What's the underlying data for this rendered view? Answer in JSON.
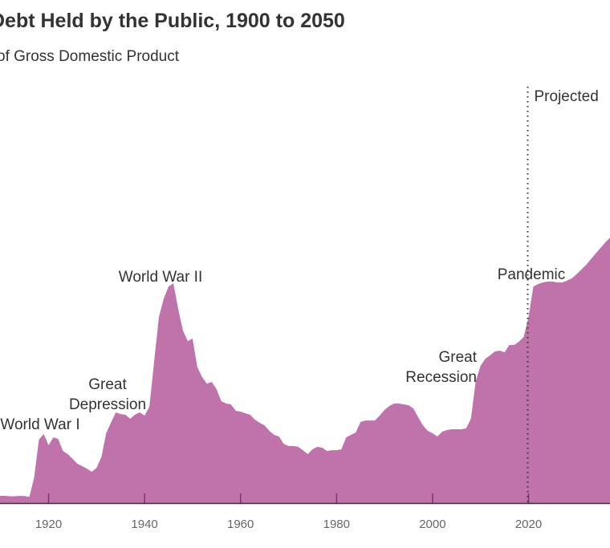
{
  "chart_data": {
    "type": "area",
    "title": "Debt Held by the Public, 1900 to 2050",
    "subtitle": "of Gross Domestic Product",
    "xlabel": "",
    "ylabel": "Percentage of Gross Domestic Product",
    "xlim": [
      1910,
      2038
    ],
    "ylim": [
      0,
      130
    ],
    "grid": false,
    "fill_color": "#c072aa",
    "tick_color": "#8a2f6e",
    "x_ticks": [
      1920,
      1940,
      1960,
      1980,
      2000,
      2020
    ],
    "x_tick_labels": [
      "1920",
      "1940",
      "1960",
      "1980",
      "2000",
      "2020"
    ],
    "projection_start": 2020,
    "projection_label": "Projected",
    "annotations": [
      {
        "text": "World War I",
        "lines": [
          "World War I"
        ],
        "x": 1919
      },
      {
        "text": "Great Depression",
        "lines": [
          "Great",
          "Depression"
        ],
        "x": 1932
      },
      {
        "text": "World War II",
        "lines": [
          "World War II"
        ],
        "x": 1946
      },
      {
        "text": "Great Recession",
        "lines": [
          "Great",
          "Recession"
        ],
        "x": 2009
      },
      {
        "text": "Pandemic",
        "lines": [
          "Pandemic"
        ],
        "x": 2020
      }
    ],
    "series": [
      {
        "name": "Debt Held by the Public",
        "x": [
          1900,
          1901,
          1902,
          1903,
          1904,
          1905,
          1906,
          1907,
          1908,
          1909,
          1910,
          1911,
          1912,
          1913,
          1914,
          1915,
          1916,
          1917,
          1918,
          1919,
          1920,
          1921,
          1922,
          1923,
          1924,
          1925,
          1926,
          1927,
          1928,
          1929,
          1930,
          1931,
          1932,
          1933,
          1934,
          1935,
          1936,
          1937,
          1938,
          1939,
          1940,
          1941,
          1942,
          1943,
          1944,
          1945,
          1946,
          1947,
          1948,
          1949,
          1950,
          1951,
          1952,
          1953,
          1954,
          1955,
          1956,
          1957,
          1958,
          1959,
          1960,
          1961,
          1962,
          1963,
          1964,
          1965,
          1966,
          1967,
          1968,
          1969,
          1970,
          1971,
          1972,
          1973,
          1974,
          1975,
          1976,
          1977,
          1978,
          1979,
          1980,
          1981,
          1982,
          1983,
          1984,
          1985,
          1986,
          1987,
          1988,
          1989,
          1990,
          1991,
          1992,
          1993,
          1994,
          1995,
          1996,
          1997,
          1998,
          1999,
          2000,
          2001,
          2002,
          2003,
          2004,
          2005,
          2006,
          2007,
          2008,
          2009,
          2010,
          2011,
          2012,
          2013,
          2014,
          2015,
          2016,
          2017,
          2018,
          2019,
          2020,
          2021,
          2022,
          2023,
          2024,
          2025,
          2026,
          2027,
          2028,
          2029,
          2030,
          2031,
          2032,
          2033,
          2034,
          2035,
          2036,
          2037,
          2038
        ],
        "values": [
          3.8,
          3.7,
          3.6,
          3.6,
          3.6,
          3.5,
          3.5,
          3.5,
          3.5,
          3.5,
          3.5,
          3.5,
          3.3,
          3.3,
          3.5,
          3.4,
          3.0,
          12.4,
          30.6,
          33.3,
          27.9,
          31.7,
          30.9,
          25.1,
          23.6,
          21.3,
          19.0,
          17.8,
          16.6,
          15.1,
          17.0,
          22.1,
          33.7,
          38.7,
          43.7,
          42.9,
          42.6,
          40.6,
          42.6,
          43.7,
          42.2,
          46.4,
          68.5,
          89.7,
          98.6,
          104.4,
          106.0,
          93.6,
          83.2,
          78.1,
          79.3,
          65.4,
          60.7,
          57.6,
          58.4,
          54.9,
          49.1,
          48.0,
          47.6,
          44.5,
          44.1,
          43.3,
          42.6,
          40.2,
          38.7,
          37.5,
          34.8,
          32.9,
          32.1,
          28.6,
          27.5,
          27.5,
          27.1,
          25.5,
          23.6,
          25.9,
          27.1,
          26.7,
          25.1,
          25.5,
          25.5,
          25.9,
          31.7,
          32.9,
          34.0,
          39.1,
          39.8,
          39.8,
          39.8,
          42.2,
          44.9,
          46.8,
          48.0,
          48.0,
          47.6,
          47.2,
          45.6,
          41.4,
          37.5,
          34.8,
          33.7,
          32.1,
          34.4,
          35.2,
          35.6,
          35.6,
          35.6,
          36.0,
          40.6,
          58.8,
          66.2,
          69.6,
          71.2,
          73.1,
          73.5,
          72.7,
          76.2,
          76.2,
          77.8,
          80.1,
          89.7,
          104.4,
          105.6,
          106.4,
          106.8,
          106.8,
          106.4,
          106.4,
          107.2,
          108.3,
          110.3,
          112.6,
          114.9,
          117.6,
          120.3,
          123.0,
          125.7,
          128.0,
          130.5
        ]
      }
    ]
  }
}
